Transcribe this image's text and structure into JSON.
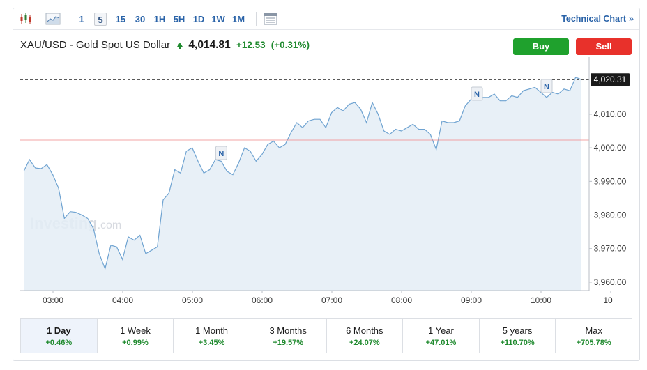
{
  "toolbar": {
    "timeframes": [
      "1",
      "5",
      "15",
      "30",
      "1H",
      "5H",
      "1D",
      "1W",
      "1M"
    ],
    "active_timeframe": "5",
    "technical_link": "Technical Chart",
    "technical_chevron": "»"
  },
  "header": {
    "instrument": "XAU/USD - Gold Spot US Dollar",
    "price": "4,014.81",
    "change": "+12.53",
    "change_pct": "(+0.31%)"
  },
  "actions": {
    "buy_label": "Buy",
    "sell_label": "Sell"
  },
  "colors": {
    "up": "#1f8a2e",
    "down": "#e8312b",
    "line": "#6fa3d1",
    "fill": "#e4edf6",
    "accent": "#2a63a8"
  },
  "watermark": {
    "brand": "Investing",
    "suffix": ".com"
  },
  "chart_data": {
    "type": "area",
    "instrument": "XAU/USD",
    "x_ticks": [
      "03:00",
      "04:00",
      "05:00",
      "06:00",
      "07:00",
      "08:00",
      "09:00",
      "10:00",
      "10"
    ],
    "y_ticks": [
      "3,960.00",
      "3,970.00",
      "3,980.00",
      "3,990.00",
      "4,000.00",
      "4,010.00"
    ],
    "ylim": [
      3957.5,
      4027
    ],
    "current_price_label": "4,020.31",
    "current_price": 4020.31,
    "previous_close": 4002.3,
    "x_start": "02:35",
    "x_end": "10:36",
    "series": [
      {
        "x": [
          "02:35",
          "02:40",
          "02:45",
          "02:50",
          "02:55",
          "03:00",
          "03:05",
          "03:10",
          "03:15",
          "03:20",
          "03:25",
          "03:30",
          "03:35",
          "03:40",
          "03:45",
          "03:50",
          "03:55",
          "04:00",
          "04:05",
          "04:10",
          "04:15",
          "04:20",
          "04:25",
          "04:30",
          "04:35",
          "04:40",
          "04:45",
          "04:50",
          "04:55",
          "05:00",
          "05:05",
          "05:10",
          "05:15",
          "05:20",
          "05:25",
          "05:30",
          "05:35",
          "05:40",
          "05:45",
          "05:50",
          "05:55",
          "06:00",
          "06:05",
          "06:10",
          "06:15",
          "06:20",
          "06:25",
          "06:30",
          "06:35",
          "06:40",
          "06:45",
          "06:50",
          "06:55",
          "07:00",
          "07:05",
          "07:10",
          "07:15",
          "07:20",
          "07:25",
          "07:30",
          "07:35",
          "07:40",
          "07:45",
          "07:50",
          "07:55",
          "08:00",
          "08:05",
          "08:10",
          "08:15",
          "08:20",
          "08:25",
          "08:30",
          "08:35",
          "08:40",
          "08:45",
          "08:50",
          "08:55",
          "09:00",
          "09:05",
          "09:10",
          "09:15",
          "09:20",
          "09:25",
          "09:30",
          "09:35",
          "09:40",
          "09:45",
          "09:50",
          "09:55",
          "10:00",
          "10:05",
          "10:10",
          "10:15",
          "10:20",
          "10:25",
          "10:30",
          "10:35"
        ],
        "values": [
          3993.0,
          3996.5,
          3994.0,
          3993.8,
          3995.0,
          3992.0,
          3988.0,
          3979.0,
          3981.0,
          3980.8,
          3980.0,
          3979.0,
          3976.0,
          3968.5,
          3964.0,
          3971.0,
          3970.5,
          3966.8,
          3973.5,
          3972.5,
          3974.0,
          3968.5,
          3969.5,
          3970.5,
          3984.5,
          3986.5,
          3993.5,
          3992.5,
          3999.0,
          4000.0,
          3996.0,
          3992.5,
          3993.5,
          3996.5,
          3996.0,
          3993.0,
          3992.0,
          3995.5,
          4000.0,
          3999.0,
          3996.0,
          3998.0,
          4001.0,
          4002.0,
          4000.0,
          4001.0,
          4004.5,
          4007.5,
          4006.0,
          4008.0,
          4008.5,
          4008.5,
          4006.0,
          4010.5,
          4012.0,
          4011.0,
          4013.0,
          4013.5,
          4011.5,
          4007.5,
          4013.5,
          4010.0,
          4005.0,
          4004.0,
          4005.5,
          4005.0,
          4006.0,
          4007.0,
          4005.5,
          4005.5,
          4004.0,
          3999.5,
          4008.0,
          4007.5,
          4007.5,
          4008.0,
          4012.5,
          4014.5,
          4014.5,
          4015.0,
          4015.0,
          4016.0,
          4014.0,
          4014.0,
          4015.5,
          4015.0,
          4017.0,
          4017.5,
          4018.0,
          4016.5,
          4015.0,
          4016.5,
          4016.0,
          4017.5,
          4017.0,
          4021.0,
          4020.31
        ]
      }
    ],
    "news_markers": [
      {
        "x": "05:25",
        "label": "N"
      },
      {
        "x": "09:05",
        "label": "N"
      },
      {
        "x": "10:05",
        "label": "N"
      }
    ],
    "grid": false,
    "xlabel": "",
    "ylabel": ""
  },
  "periods": [
    {
      "label": "1 Day",
      "change": "+0.46%"
    },
    {
      "label": "1 Week",
      "change": "+0.99%"
    },
    {
      "label": "1 Month",
      "change": "+3.45%"
    },
    {
      "label": "3 Months",
      "change": "+19.57%"
    },
    {
      "label": "6 Months",
      "change": "+24.07%"
    },
    {
      "label": "1 Year",
      "change": "+47.01%"
    },
    {
      "label": "5 years",
      "change": "+110.70%"
    },
    {
      "label": "Max",
      "change": "+705.78%"
    }
  ],
  "active_period": "1 Day"
}
